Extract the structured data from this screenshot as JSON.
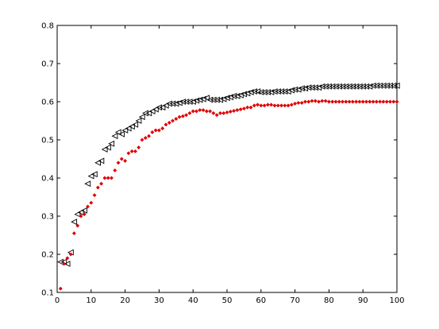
{
  "chart_data": {
    "type": "scatter",
    "title": "",
    "xlabel": "",
    "ylabel": "",
    "xlim": [
      0,
      100
    ],
    "ylim": [
      0.1,
      0.8
    ],
    "xticks": [
      0,
      10,
      20,
      30,
      40,
      50,
      60,
      70,
      80,
      90,
      100
    ],
    "xtick_labels": [
      "0",
      "10",
      "20",
      "30",
      "40",
      "50",
      "60",
      "70",
      "80",
      "90",
      "100"
    ],
    "yticks": [
      0.1,
      0.2,
      0.3,
      0.4,
      0.5,
      0.6,
      0.7,
      0.8
    ],
    "ytick_labels": [
      "0.1",
      "0.2",
      "0.3",
      "0.4",
      "0.5",
      "0.6",
      "0.7",
      "0.8"
    ],
    "grid": false,
    "legend": "none",
    "series": [
      {
        "marker": "triangle-left",
        "color": "#000000",
        "x": [
          1,
          2,
          3,
          4,
          5,
          6,
          7,
          8,
          9,
          10,
          11,
          12,
          13,
          14,
          15,
          16,
          17,
          18,
          19,
          20,
          21,
          22,
          23,
          24,
          25,
          26,
          27,
          28,
          29,
          30,
          31,
          32,
          33,
          34,
          35,
          36,
          37,
          38,
          39,
          40,
          41,
          42,
          43,
          44,
          45,
          46,
          47,
          48,
          49,
          50,
          51,
          52,
          53,
          54,
          55,
          56,
          57,
          58,
          59,
          60,
          61,
          62,
          63,
          64,
          65,
          66,
          67,
          68,
          69,
          70,
          71,
          72,
          73,
          74,
          75,
          76,
          77,
          78,
          79,
          80,
          81,
          82,
          83,
          84,
          85,
          86,
          87,
          88,
          89,
          90,
          91,
          92,
          93,
          94,
          95,
          96,
          97,
          98,
          99,
          100
        ],
        "y": [
          0.18,
          0.18,
          0.175,
          0.205,
          0.285,
          0.305,
          0.31,
          0.315,
          0.385,
          0.405,
          0.41,
          0.44,
          0.445,
          0.475,
          0.48,
          0.49,
          0.51,
          0.52,
          0.515,
          0.525,
          0.53,
          0.535,
          0.54,
          0.55,
          0.56,
          0.57,
          0.57,
          0.575,
          0.58,
          0.585,
          0.585,
          0.59,
          0.595,
          0.595,
          0.595,
          0.597,
          0.6,
          0.6,
          0.6,
          0.6,
          0.603,
          0.605,
          0.607,
          0.61,
          0.605,
          0.605,
          0.605,
          0.605,
          0.607,
          0.61,
          0.612,
          0.615,
          0.615,
          0.617,
          0.62,
          0.622,
          0.625,
          0.627,
          0.627,
          0.625,
          0.625,
          0.625,
          0.625,
          0.627,
          0.627,
          0.627,
          0.627,
          0.627,
          0.63,
          0.632,
          0.632,
          0.635,
          0.635,
          0.637,
          0.637,
          0.637,
          0.637,
          0.64,
          0.64,
          0.64,
          0.64,
          0.64,
          0.64,
          0.64,
          0.64,
          0.64,
          0.64,
          0.64,
          0.64,
          0.64,
          0.64,
          0.64,
          0.642,
          0.642,
          0.642,
          0.642,
          0.642,
          0.642,
          0.642,
          0.642
        ]
      },
      {
        "marker": "diamond",
        "color": "#e00000",
        "x": [
          1,
          2,
          3,
          4,
          5,
          6,
          7,
          8,
          9,
          10,
          11,
          12,
          13,
          14,
          15,
          16,
          17,
          18,
          19,
          20,
          21,
          22,
          23,
          24,
          25,
          26,
          27,
          28,
          29,
          30,
          31,
          32,
          33,
          34,
          35,
          36,
          37,
          38,
          39,
          40,
          41,
          42,
          43,
          44,
          45,
          46,
          47,
          48,
          49,
          50,
          51,
          52,
          53,
          54,
          55,
          56,
          57,
          58,
          59,
          60,
          61,
          62,
          63,
          64,
          65,
          66,
          67,
          68,
          69,
          70,
          71,
          72,
          73,
          74,
          75,
          76,
          77,
          78,
          79,
          80,
          81,
          82,
          83,
          84,
          85,
          86,
          87,
          88,
          89,
          90,
          91,
          92,
          93,
          94,
          95,
          96,
          97,
          98,
          99,
          100
        ],
        "y": [
          0.11,
          0.175,
          0.19,
          0.2,
          0.255,
          0.275,
          0.3,
          0.305,
          0.325,
          0.335,
          0.355,
          0.375,
          0.385,
          0.4,
          0.4,
          0.4,
          0.42,
          0.44,
          0.45,
          0.445,
          0.465,
          0.47,
          0.47,
          0.48,
          0.5,
          0.505,
          0.51,
          0.52,
          0.525,
          0.525,
          0.53,
          0.54,
          0.545,
          0.55,
          0.555,
          0.56,
          0.562,
          0.565,
          0.57,
          0.575,
          0.575,
          0.578,
          0.578,
          0.575,
          0.575,
          0.57,
          0.565,
          0.57,
          0.57,
          0.572,
          0.574,
          0.576,
          0.578,
          0.58,
          0.582,
          0.585,
          0.585,
          0.59,
          0.592,
          0.59,
          0.59,
          0.592,
          0.592,
          0.59,
          0.59,
          0.59,
          0.59,
          0.59,
          0.592,
          0.595,
          0.597,
          0.597,
          0.6,
          0.6,
          0.602,
          0.602,
          0.6,
          0.602,
          0.602,
          0.6,
          0.6,
          0.6,
          0.6,
          0.6,
          0.6,
          0.6,
          0.6,
          0.6,
          0.6,
          0.6,
          0.6,
          0.6,
          0.6,
          0.6,
          0.6,
          0.6,
          0.6,
          0.6,
          0.6,
          0.6
        ]
      }
    ]
  }
}
